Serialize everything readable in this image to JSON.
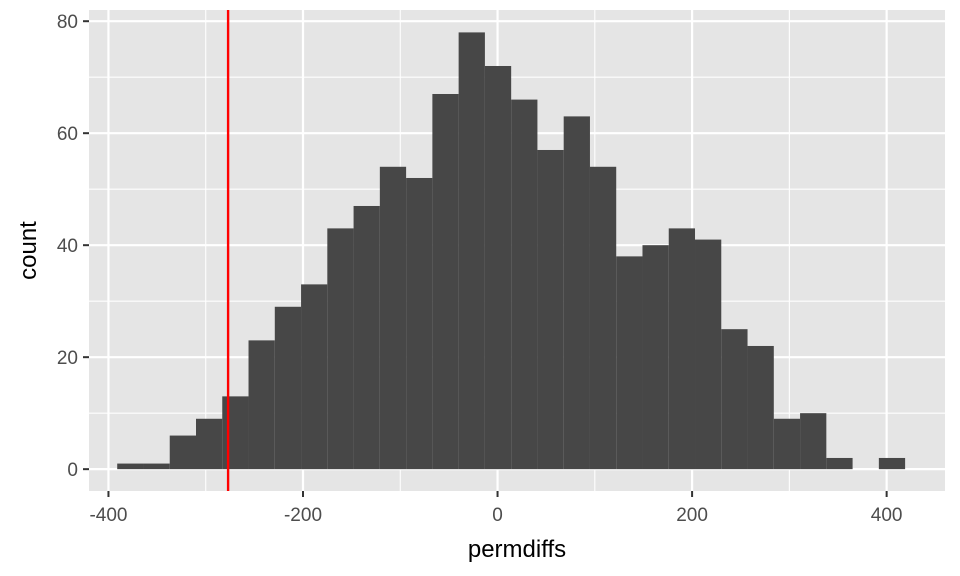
{
  "chart_data": {
    "type": "bar",
    "histogram": true,
    "xlabel": "permdiffs",
    "ylabel": "count",
    "xlim": [
      -420,
      460
    ],
    "ylim": [
      -3.9,
      82
    ],
    "x_ticks": [
      -400,
      -200,
      0,
      200,
      400
    ],
    "x_tick_labels": [
      "-400",
      "-200",
      "0",
      "200",
      "400"
    ],
    "y_ticks": [
      0,
      20,
      40,
      60,
      80
    ],
    "y_tick_labels": [
      "0",
      "20",
      "40",
      "60",
      "80"
    ],
    "bin_width": 27,
    "bin_starts": [
      -391,
      -364,
      -337,
      -310,
      -283,
      -256,
      -229,
      -202,
      -175,
      -148,
      -121,
      -94,
      -67,
      -40,
      -13,
      14,
      41,
      68,
      95,
      122,
      149,
      176,
      203,
      230,
      257,
      284,
      311,
      338,
      365,
      392
    ],
    "values": [
      1,
      1,
      6,
      9,
      13,
      23,
      29,
      33,
      43,
      47,
      54,
      52,
      67,
      78,
      72,
      66,
      57,
      63,
      54,
      38,
      40,
      43,
      41,
      25,
      22,
      9,
      10,
      2,
      0,
      2
    ],
    "reference_line": {
      "x": -277,
      "color": "#ff0000"
    },
    "grid": true,
    "colors": {
      "panel_background": "#e5e5e5",
      "grid": "#ffffff",
      "bars": "#474747",
      "reference_line": "#ff0000"
    }
  }
}
